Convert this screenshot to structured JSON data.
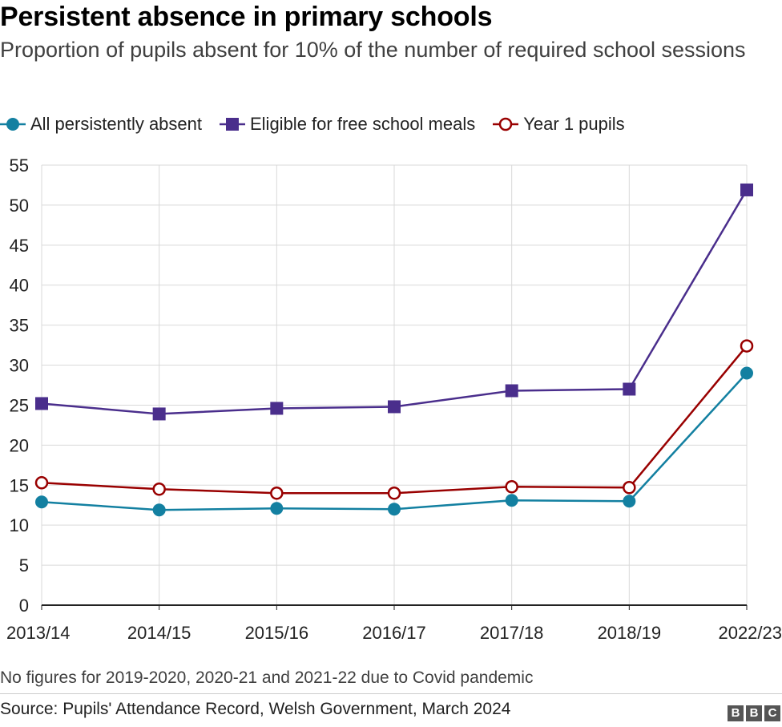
{
  "header": {
    "title": "Persistent absence in primary schools",
    "subtitle": "Proportion of pupils absent for 10% of the number of required school sessions"
  },
  "footer": {
    "note": "No figures for 2019-2020, 2020-21 and 2021-22 due to Covid pandemic",
    "source": "Source: Pupils' Attendance Record, Welsh Government, March 2024",
    "logo_letters": [
      "B",
      "B",
      "C"
    ]
  },
  "chart_data": {
    "type": "line",
    "title": "Persistent absence in primary schools",
    "subtitle": "Proportion of pupils absent for 10% of the number of required school sessions",
    "xlabel": "",
    "ylabel": "",
    "categories": [
      "2013/14",
      "2014/15",
      "2015/16",
      "2016/17",
      "2017/18",
      "2018/19",
      "2022/23"
    ],
    "ylim": [
      0,
      55
    ],
    "yticks": [
      0,
      5,
      10,
      15,
      20,
      25,
      30,
      35,
      40,
      45,
      50,
      55
    ],
    "grid": true,
    "legend_position": "top-left",
    "series": [
      {
        "name": "All persistently absent",
        "color": "#1380A1",
        "marker": "circle-filled",
        "values": [
          12.9,
          11.9,
          12.1,
          12.0,
          13.1,
          13.0,
          29.0
        ]
      },
      {
        "name": "Eligible for free school meals",
        "color": "#4A2E8C",
        "marker": "square",
        "values": [
          25.2,
          23.9,
          24.6,
          24.8,
          26.8,
          27.0,
          51.9
        ]
      },
      {
        "name": "Year 1 pupils",
        "color": "#990000",
        "marker": "circle-open",
        "values": [
          15.3,
          14.5,
          14.0,
          14.0,
          14.8,
          14.7,
          32.4
        ]
      }
    ]
  }
}
